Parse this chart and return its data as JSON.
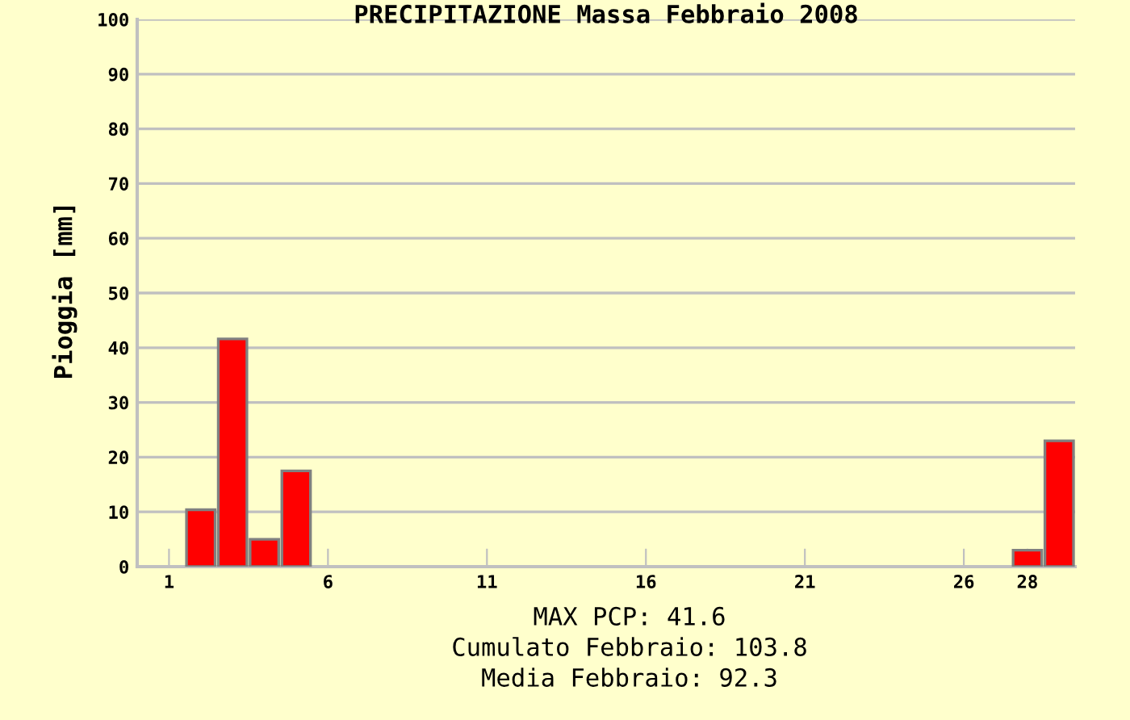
{
  "chart_data": {
    "type": "bar",
    "title": "PRECIPITAZIONE Massa Febbraio 2008",
    "ylabel": "Pioggia [mm]",
    "x": [
      2,
      3,
      4,
      5,
      28,
      29
    ],
    "values": [
      10.4,
      41.6,
      5,
      17.5,
      3,
      23
    ],
    "color": "#ff0000",
    "xlim": [
      0,
      29.5
    ],
    "xticks": [
      1,
      6,
      11,
      16,
      21,
      26,
      28
    ],
    "ylim": [
      0,
      100
    ],
    "yticks": [
      0,
      10,
      20,
      30,
      40,
      50,
      60,
      70,
      80,
      90,
      100
    ],
    "grid": "y",
    "annotations": [
      "MAX PCP: 41.6",
      "Cumulato Febbraio: 103.8",
      "Media Febbraio: 92.3"
    ]
  }
}
